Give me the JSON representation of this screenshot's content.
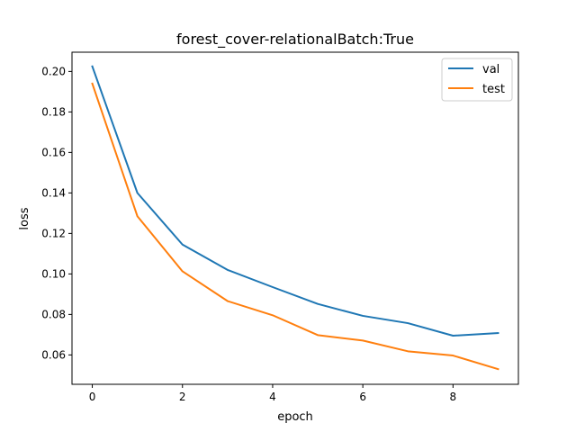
{
  "chart_data": {
    "type": "line",
    "title": "forest_cover-relationalBatch:True",
    "xlabel": "epoch",
    "ylabel": "loss",
    "xlim": [
      -0.45,
      9.45
    ],
    "ylim": [
      0.0455,
      0.2095
    ],
    "xticks": [
      0,
      2,
      4,
      6,
      8
    ],
    "xtick_labels": [
      "0",
      "2",
      "4",
      "6",
      "8"
    ],
    "yticks": [
      0.06,
      0.08,
      0.1,
      0.12,
      0.14,
      0.16,
      0.18,
      0.2
    ],
    "ytick_labels": [
      "0.06",
      "0.08",
      "0.10",
      "0.12",
      "0.14",
      "0.16",
      "0.18",
      "0.20"
    ],
    "grid": false,
    "legend_position": "top-right",
    "x": [
      0,
      1,
      2,
      3,
      4,
      5,
      6,
      7,
      8,
      9
    ],
    "series": [
      {
        "name": "val",
        "color": "#1f77b4",
        "values": [
          0.2025,
          0.14,
          0.1145,
          0.102,
          0.0935,
          0.0852,
          0.0793,
          0.0757,
          0.0695,
          0.0708
        ]
      },
      {
        "name": "test",
        "color": "#ff7f0e",
        "values": [
          0.194,
          0.1285,
          0.1013,
          0.0866,
          0.0796,
          0.0698,
          0.0671,
          0.0618,
          0.0597,
          0.053
        ]
      }
    ]
  }
}
